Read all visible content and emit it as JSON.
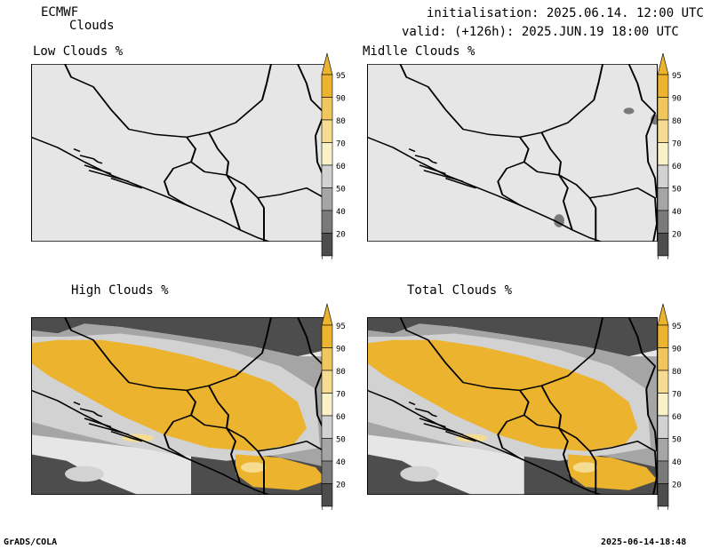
{
  "header": {
    "model": "ECMWF",
    "product": "Clouds",
    "init": "initialisation: 2025.06.14. 12:00 UTC",
    "valid": "valid: (+126h): 2025.JUN.19 18:00 UTC"
  },
  "panels": [
    {
      "title": "Low Clouds %"
    },
    {
      "title": "Midlle Clouds %"
    },
    {
      "title": "High Clouds %"
    },
    {
      "title": "Total Clouds %"
    }
  ],
  "legend": {
    "labels": [
      "95",
      "90",
      "80",
      "70",
      "60",
      "50",
      "40",
      "20"
    ],
    "colors": [
      "#ebb32e",
      "#f0c75c",
      "#f5dc91",
      "#f9f2c8",
      "#d2d2d2",
      "#a5a5a5",
      "#7a7a7a",
      "#4d4d4d"
    ]
  },
  "footer": {
    "left": "GrADS/COLA",
    "right": "2025-06-14-18:48"
  }
}
